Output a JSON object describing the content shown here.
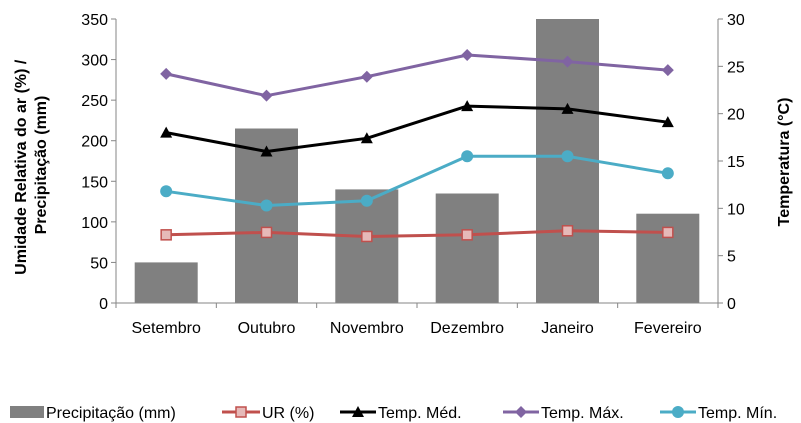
{
  "chart_data": {
    "type": "bar",
    "categories": [
      "Setembro",
      "Outubro",
      "Novembro",
      "Dezembro",
      "Janeiro",
      "Fevereiro"
    ],
    "title": "",
    "ylabel_left": [
      "Umidade Relativa do ar (%) /",
      "Precipitação (mm)"
    ],
    "ylabel_right": "Temperatura (°C)",
    "y_left": {
      "min": 0,
      "max": 350,
      "ticks": [
        "0",
        "50",
        "100",
        "150",
        "200",
        "250",
        "300",
        "350"
      ]
    },
    "y_right": {
      "min": 0,
      "max": 30,
      "ticks": [
        "0",
        "5",
        "10",
        "15",
        "20",
        "25",
        "30"
      ]
    },
    "grid": false,
    "legend_position": "bottom",
    "series": [
      {
        "name": "Precipitação (mm)",
        "kind": "bar",
        "axis": "left",
        "color": "#808080",
        "marker": "none",
        "values": [
          50,
          215,
          140,
          135,
          350,
          110
        ]
      },
      {
        "name": "UR (%)",
        "kind": "line",
        "axis": "left",
        "color": "#C0504D",
        "marker": "square",
        "values": [
          84,
          87,
          82,
          84,
          89,
          87
        ]
      },
      {
        "name": "Temp. Méd.",
        "kind": "line",
        "axis": "right",
        "color": "#000000",
        "marker": "triangle",
        "values": [
          18.0,
          16.0,
          17.4,
          20.8,
          20.5,
          19.1
        ]
      },
      {
        "name": "Temp. Máx.",
        "kind": "line",
        "axis": "right",
        "color": "#8064A2",
        "marker": "diamond",
        "values": [
          24.2,
          21.9,
          23.9,
          26.2,
          25.5,
          24.6
        ]
      },
      {
        "name": "Temp. Mín.",
        "kind": "line",
        "axis": "right",
        "color": "#4BACC6",
        "marker": "circle",
        "values": [
          11.8,
          10.3,
          10.8,
          15.5,
          15.5,
          13.7
        ]
      }
    ]
  }
}
